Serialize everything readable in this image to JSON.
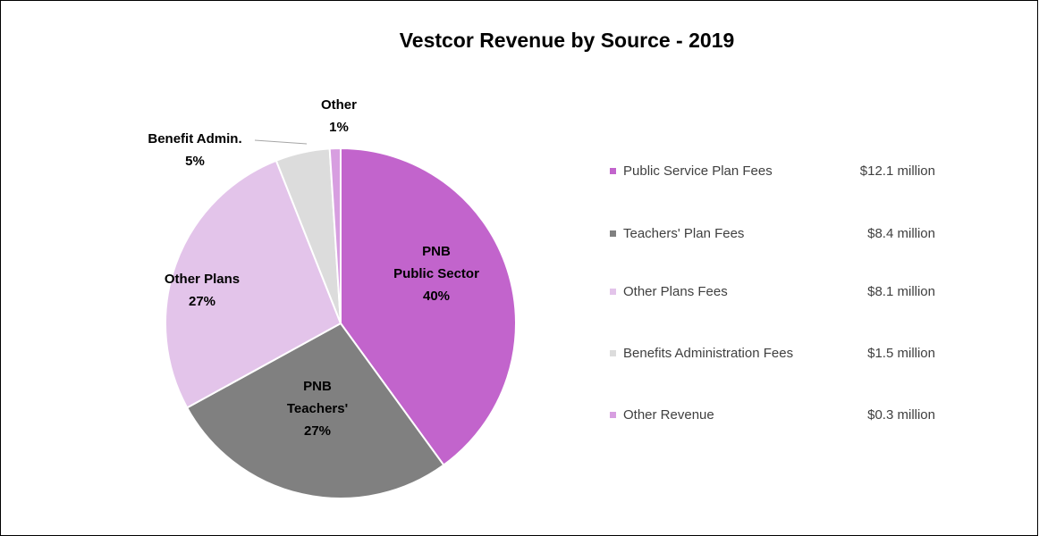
{
  "chart_data": {
    "type": "pie",
    "title": "Vestcor Revenue by Source - 2019",
    "categories": [
      "Public Service Plan Fees",
      "Teachers' Plan Fees",
      "Other Plans Fees",
      "Benefits Administration Fees",
      "Other Revenue"
    ],
    "amounts": [
      "$12.1 million",
      "$8.4 million",
      "$8.1 million",
      "$1.5 million",
      "$0.3 million"
    ],
    "values": [
      40,
      27,
      27,
      5,
      1
    ],
    "value_labels": [
      "40%",
      "27%",
      "27%",
      "5%",
      "1%"
    ],
    "slice_labels": [
      [
        "PNB",
        "Public Sector"
      ],
      [
        "PNB",
        "Teachers'"
      ],
      [
        "Other Plans"
      ],
      [
        "Benefit Admin."
      ],
      [
        "Other"
      ]
    ],
    "colors": [
      "#c264cc",
      "#808080",
      "#e3c4ea",
      "#dcdcdc",
      "#d79ee0"
    ],
    "legend": "right"
  }
}
